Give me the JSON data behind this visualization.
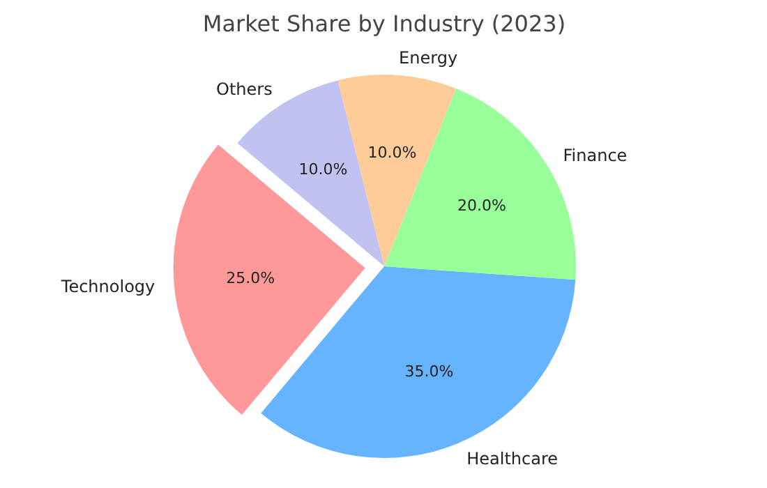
{
  "chart_data": {
    "type": "pie",
    "title": "Market Share by Industry (2023)",
    "categories": [
      "Technology",
      "Healthcare",
      "Finance",
      "Energy",
      "Others"
    ],
    "values": [
      25,
      35,
      20,
      10,
      10
    ],
    "colors": [
      "#ff9999",
      "#66b3ff",
      "#99ff99",
      "#ffcc99",
      "#c2c2f0"
    ],
    "value_labels": [
      "25.0%",
      "35.0%",
      "20.0%",
      "10.0%",
      "10.0%"
    ]
  }
}
